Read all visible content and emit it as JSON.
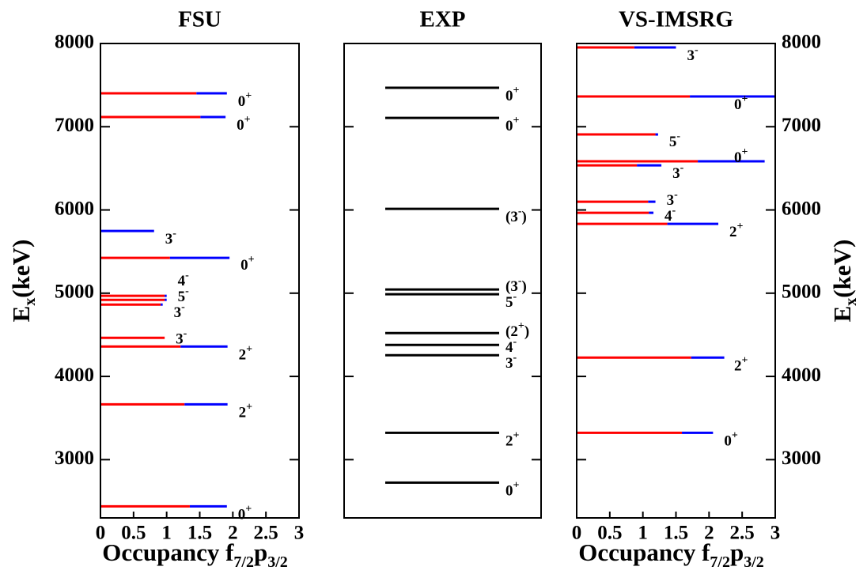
{
  "chart_data": [
    {
      "type": "levels",
      "title": "FSU",
      "yaxis": "left",
      "ylim": [
        2300,
        8000
      ],
      "yticks": [
        3000,
        4000,
        5000,
        6000,
        7000,
        8000
      ],
      "xlim": [
        0,
        3
      ],
      "xticks": [
        0,
        0.5,
        1,
        1.5,
        2,
        2.5,
        3
      ],
      "xlabel": {
        "text": "Occupancy f",
        "sub1": "7/2",
        "mid": "p",
        "sub2": "3/2"
      },
      "ylabel": {
        "text": "E",
        "sub": "x",
        "unit": "(keV)"
      },
      "colors": {
        "f": "#ff0000",
        "p": "#0000ff"
      },
      "levels": [
        {
          "energy": 2439,
          "spin": "0",
          "parity": "+",
          "f": 1.35,
          "p": 0.56
        },
        {
          "energy": 3665,
          "spin": "2",
          "parity": "+",
          "f": 1.27,
          "p": 0.65
        },
        {
          "energy": 4359,
          "spin": "2",
          "parity": "+",
          "f": 1.21,
          "p": 0.71
        },
        {
          "energy": 4464,
          "spin": "3",
          "parity": "-",
          "f": 0.97,
          "p": 0.0
        },
        {
          "energy": 4863,
          "spin": "3",
          "parity": "-",
          "f": 0.91,
          "p": 0.03
        },
        {
          "energy": 4920,
          "spin": "5",
          "parity": "-",
          "f": 0.97,
          "p": 0.03
        },
        {
          "energy": 4968,
          "spin": "4",
          "parity": "-",
          "f": 0.97,
          "p": 0.03
        },
        {
          "energy": 5424,
          "spin": "0",
          "parity": "+",
          "f": 1.05,
          "p": 0.9
        },
        {
          "energy": 5747,
          "spin": "3",
          "parity": "-",
          "f": 0.0,
          "p": 0.81
        },
        {
          "energy": 7116,
          "spin": "0",
          "parity": "+",
          "f": 1.51,
          "p": 0.38
        },
        {
          "energy": 7401,
          "spin": "0",
          "parity": "+",
          "f": 1.45,
          "p": 0.46
        }
      ]
    },
    {
      "type": "levels",
      "title": "EXP",
      "ylim": [
        2300,
        8000
      ],
      "yticks": [
        3000,
        4000,
        5000,
        6000,
        7000,
        8000
      ],
      "color": "#000000",
      "levels": [
        {
          "energy": 2724,
          "spin": "0",
          "parity": "+"
        },
        {
          "energy": 3323,
          "spin": "2",
          "parity": "+"
        },
        {
          "energy": 4255,
          "spin": "3",
          "parity": "-"
        },
        {
          "energy": 4378,
          "spin": "4",
          "parity": "-"
        },
        {
          "energy": 4521,
          "spin": "(2",
          "parity": "+",
          "suffix": ")"
        },
        {
          "energy": 4987,
          "spin": "5",
          "parity": "-"
        },
        {
          "energy": 5044,
          "spin": "(3",
          "parity": "-",
          "suffix": ")"
        },
        {
          "energy": 6013,
          "spin": "(3",
          "parity": "-",
          "suffix": ")"
        },
        {
          "energy": 7106,
          "spin": "0",
          "parity": "+"
        },
        {
          "energy": 7468,
          "spin": "0",
          "parity": "+"
        }
      ]
    },
    {
      "type": "levels",
      "title": "VS-IMSRG",
      "yaxis": "right",
      "ylim": [
        2300,
        8000
      ],
      "yticks": [
        3000,
        4000,
        5000,
        6000,
        7000,
        8000
      ],
      "xlim": [
        0,
        3
      ],
      "xticks": [
        0,
        0.5,
        1,
        1.5,
        2,
        2.5,
        3
      ],
      "xlabel": {
        "text": "Occupancy f",
        "sub1": "7/2",
        "mid": "p",
        "sub2": "3/2"
      },
      "ylabel": {
        "text": "E",
        "sub": "x",
        "unit": "(keV)"
      },
      "colors": {
        "f": "#ff0000",
        "p": "#0000ff"
      },
      "levels": [
        {
          "energy": 3323,
          "spin": "0",
          "parity": "+",
          "f": 1.59,
          "p": 0.47
        },
        {
          "energy": 4226,
          "spin": "2",
          "parity": "+",
          "f": 1.73,
          "p": 0.5
        },
        {
          "energy": 5833,
          "spin": "2",
          "parity": "+",
          "f": 1.37,
          "p": 0.77
        },
        {
          "energy": 5966,
          "spin": "4",
          "parity": "-",
          "f": 1.09,
          "p": 0.07
        },
        {
          "energy": 6099,
          "spin": "3",
          "parity": "-",
          "f": 1.08,
          "p": 0.11
        },
        {
          "energy": 6536,
          "spin": "3",
          "parity": "-",
          "f": 0.91,
          "p": 0.37
        },
        {
          "energy": 6584,
          "spin": "0",
          "parity": "+",
          "f": 1.83,
          "p": 1.01
        },
        {
          "energy": 6907,
          "spin": "5",
          "parity": "-",
          "f": 1.19,
          "p": 0.04
        },
        {
          "energy": 7363,
          "spin": "0",
          "parity": "+",
          "f": 1.71,
          "p": 1.3
        },
        {
          "energy": 7952,
          "spin": "3",
          "parity": "-",
          "f": 0.87,
          "p": 0.63
        }
      ]
    }
  ]
}
